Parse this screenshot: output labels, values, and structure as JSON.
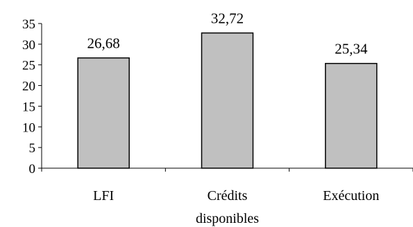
{
  "chart_data": {
    "type": "bar",
    "categories": [
      [
        "LFI"
      ],
      [
        "Crédits",
        "disponibles"
      ],
      [
        "Exécution"
      ]
    ],
    "values": [
      26.68,
      32.72,
      25.34
    ],
    "value_labels": [
      "26,68",
      "32,72",
      "25,34"
    ],
    "title": "",
    "xlabel": "",
    "ylabel": "",
    "ylim": [
      0,
      35
    ],
    "yticks": [
      0,
      5,
      10,
      15,
      20,
      25,
      30,
      35
    ],
    "ytick_labels": [
      "0",
      "5",
      "10",
      "15",
      "20",
      "25",
      "30",
      "35"
    ],
    "grid": false,
    "legend": "none",
    "colors": {
      "bar_fill": "#c0c0c0",
      "bar_stroke": "#000000",
      "axis": "#000000"
    }
  }
}
